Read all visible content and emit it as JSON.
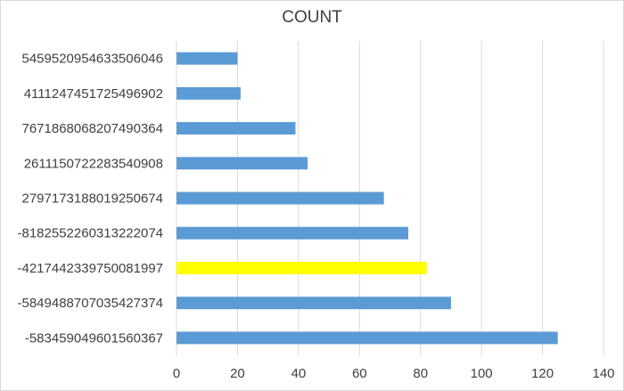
{
  "chart_data": {
    "type": "bar",
    "orientation": "horizontal",
    "title": "COUNT",
    "xlabel": "",
    "ylabel": "",
    "categories": [
      "5459520954633506046",
      "4111247451725496902",
      "7671868068207490364",
      "2611150722283540908",
      "2797173188019250674",
      "-8182552260313222074",
      "-4217442339750081997",
      "-5849488707035427374",
      "-583459049601560367"
    ],
    "values": [
      20,
      21,
      39,
      43,
      68,
      76,
      82,
      90,
      125
    ],
    "xlim": [
      0,
      140
    ],
    "xticks": [
      "0",
      "20",
      "40",
      "60",
      "80",
      "100",
      "120",
      "140"
    ],
    "grid": "vertical",
    "legend": "none",
    "colors": {
      "bar": "#5b9bd5",
      "highlight": "#ffff00",
      "grid": "#d9d9d9",
      "text": "#404040"
    },
    "highlight_category": "-4217442339750081997"
  }
}
